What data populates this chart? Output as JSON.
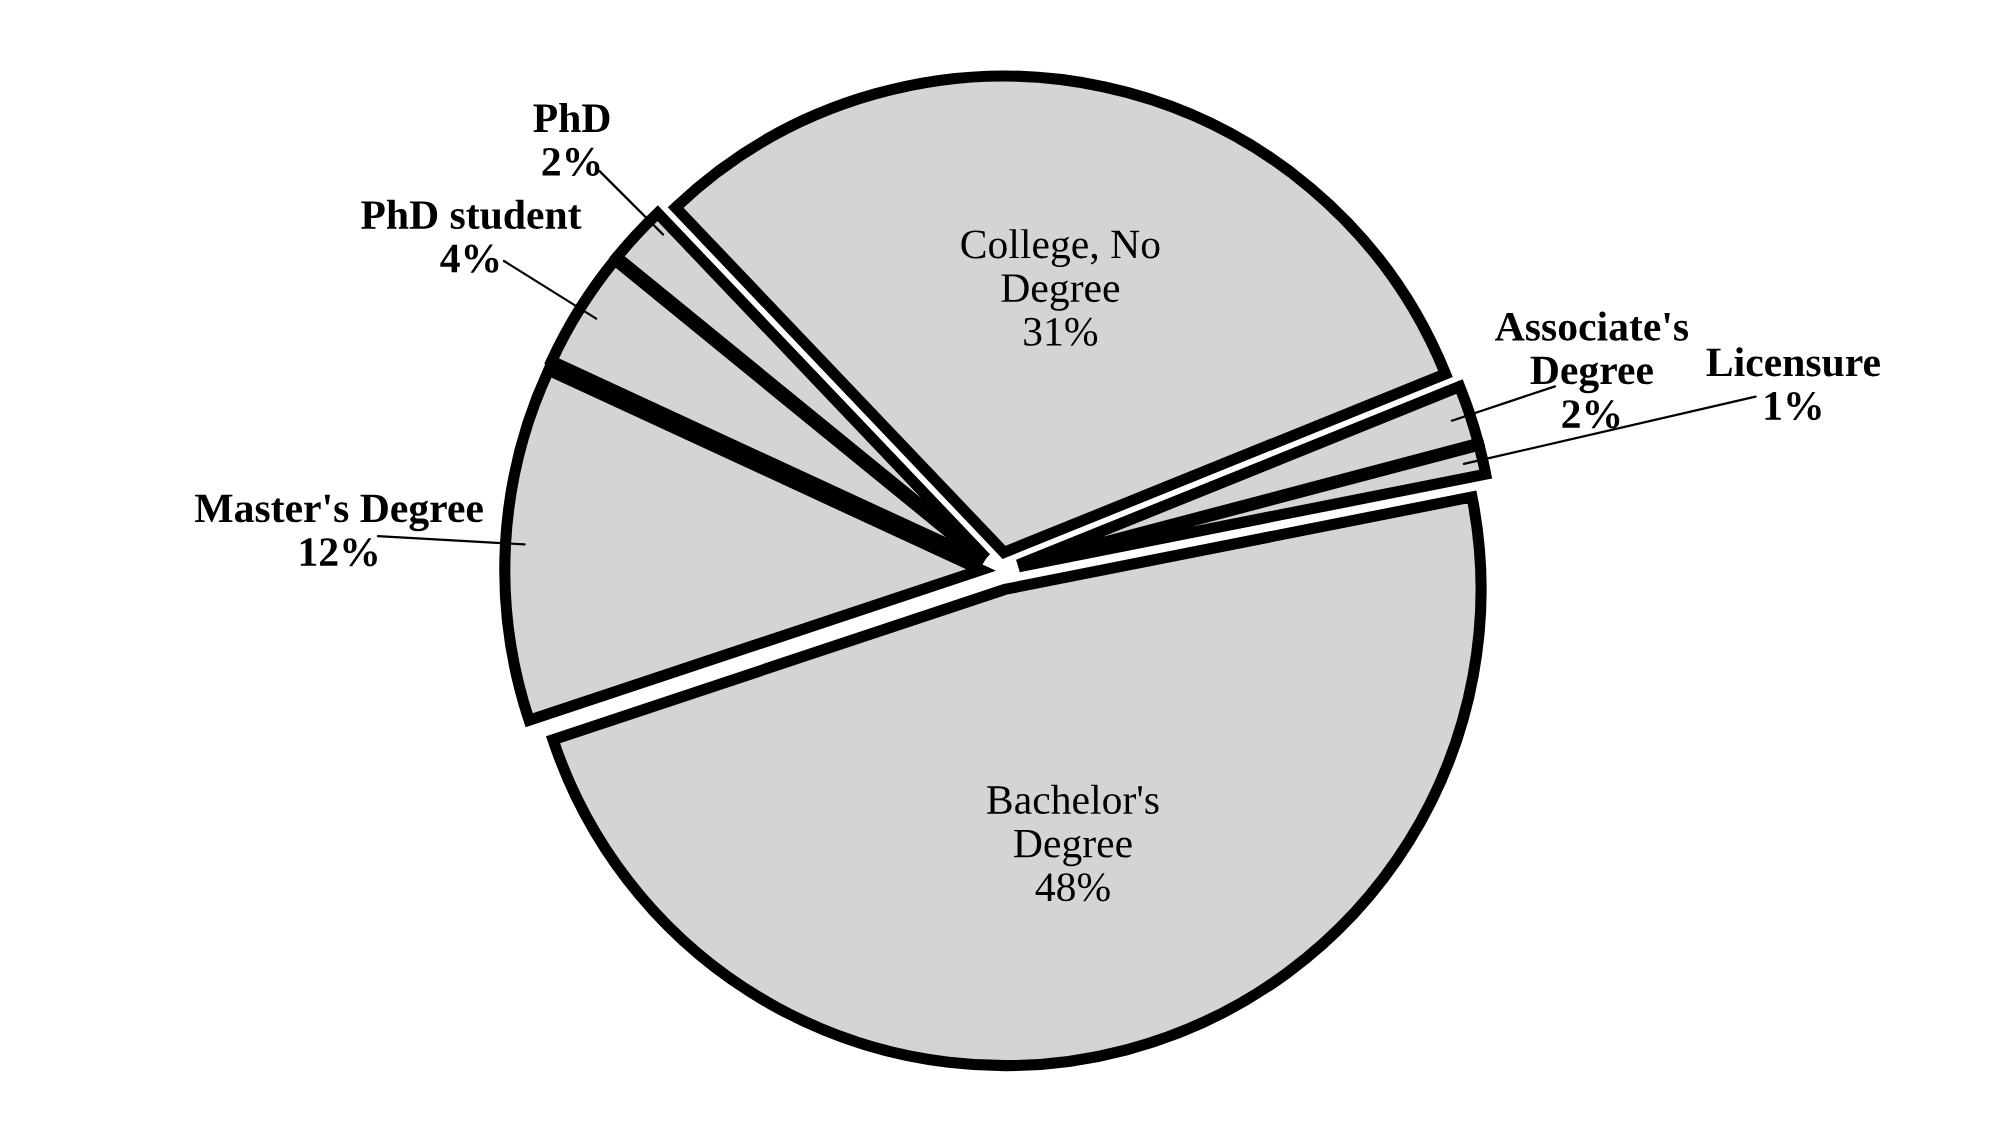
{
  "chart_data": {
    "type": "pie",
    "categories": [
      "Associate's Degree",
      "Licensure",
      "Bachelor's Degree",
      "Master's Degree",
      "PhD student",
      "PhD",
      "College, No Degree"
    ],
    "values": [
      2,
      1,
      48,
      12,
      4,
      2,
      31
    ],
    "value_labels": [
      "2%",
      "1%",
      "48%",
      "12%",
      "4%",
      "2%",
      "31%"
    ],
    "colors": [
      "#d4d4d4",
      "#d4d4d4",
      "#d4d4d4",
      "#d4d4d4",
      "#d4d4d4",
      "#d4d4d4",
      "#d4d4d4"
    ]
  }
}
